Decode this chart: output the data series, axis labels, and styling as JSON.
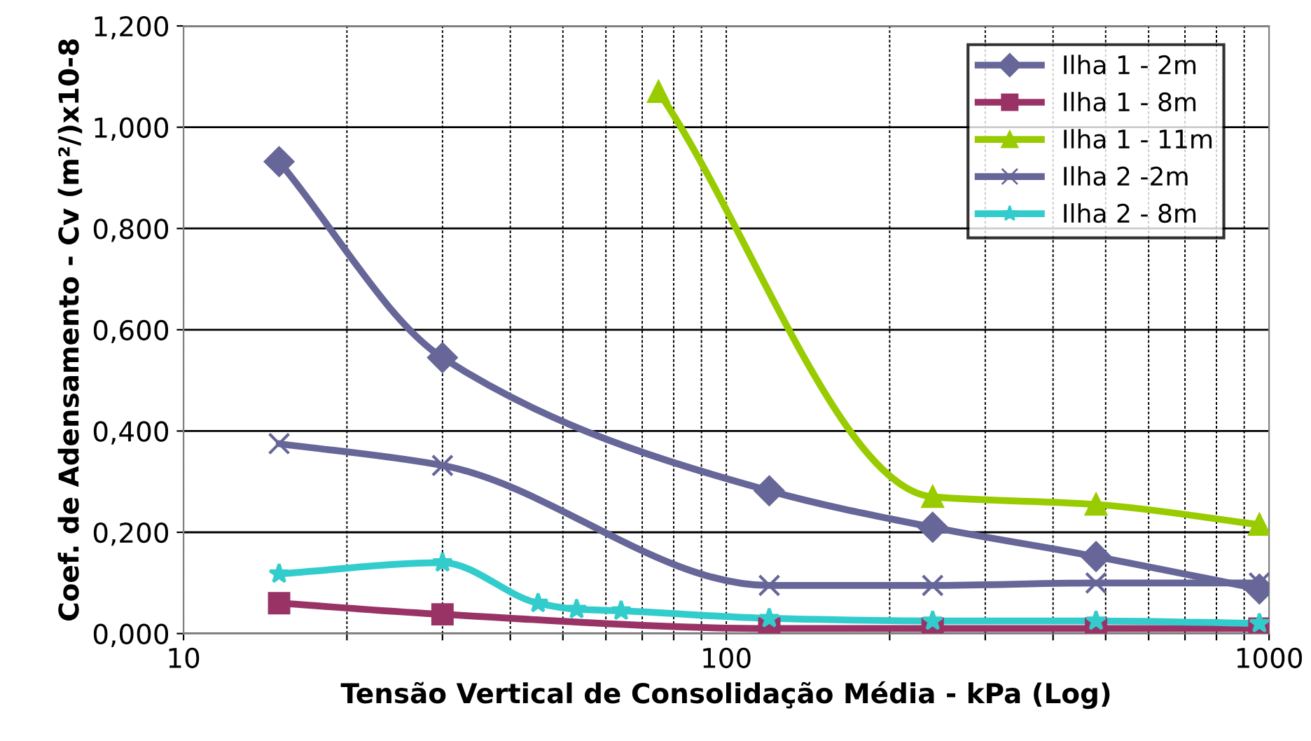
{
  "chart_data": {
    "type": "line",
    "xlabel": "Tensão Vertical de Consolidação Média - kPa (Log)",
    "ylabel": "Coef. de Adensamento - Cv (m²/)x10-8",
    "log": "x",
    "xlim": [
      10,
      1000
    ],
    "xticks": [
      10,
      {
        "value": 20,
        "label": null
      },
      {
        "value": 30,
        "label": null
      },
      {
        "value": 40,
        "label": null
      },
      {
        "value": 50,
        "label": null
      },
      {
        "value": 60,
        "label": null
      },
      {
        "value": 70,
        "label": null
      },
      {
        "value": 80,
        "label": null
      },
      {
        "value": 90,
        "label": null
      },
      100,
      {
        "value": 200,
        "label": null
      },
      {
        "value": 300,
        "label": null
      },
      {
        "value": 400,
        "label": null
      },
      {
        "value": 500,
        "label": null
      },
      {
        "value": 600,
        "label": null
      },
      {
        "value": 700,
        "label": null
      },
      {
        "value": 800,
        "label": null
      },
      {
        "value": 900,
        "label": null
      },
      1000
    ],
    "ylim": [
      0,
      1.2
    ],
    "yticks": [
      {
        "value": 0,
        "label": "0,000"
      },
      {
        "value": 0.2,
        "label": "0,200"
      },
      {
        "value": 0.4,
        "label": "0,400"
      },
      {
        "value": 0.6,
        "label": "0,600"
      },
      {
        "value": 0.8,
        "label": "0,800"
      },
      {
        "value": 1.0,
        "label": "1,000"
      },
      {
        "value": 1.2,
        "label": "1,200"
      }
    ],
    "grid": true,
    "legend": "top right",
    "line_style": "solid",
    "series": [
      {
        "name": "Ilha 1 - 2m",
        "color": "#666699",
        "marker": "diamond",
        "x": [
          15,
          30,
          120,
          240,
          480,
          960
        ],
        "values": [
          0.932,
          0.545,
          0.282,
          0.21,
          0.152,
          0.088
        ]
      },
      {
        "name": "Ilha 1 - 8m",
        "color": "#993366",
        "marker": "square",
        "x": [
          15,
          30,
          120,
          240,
          480,
          960
        ],
        "values": [
          0.06,
          0.038,
          0.01,
          0.01,
          0.01,
          0.01
        ]
      },
      {
        "name": "Ilha 1 - 11m",
        "color": "#99cc00",
        "marker": "triangle",
        "x": [
          75,
          240,
          480,
          960
        ],
        "values": [
          1.07,
          0.27,
          0.255,
          0.215
        ]
      },
      {
        "name": "Ilha 2 -2m",
        "color": "#666699",
        "marker": "cross",
        "x": [
          15,
          30,
          120,
          240,
          480,
          960
        ],
        "values": [
          0.375,
          0.332,
          0.095,
          0.095,
          0.1,
          0.1
        ]
      },
      {
        "name": "Ilha 2 - 8m",
        "color": "#33cccc",
        "marker": "star",
        "x": [
          15,
          30,
          45,
          53,
          64,
          120,
          240,
          480,
          960
        ],
        "values": [
          0.118,
          0.14,
          0.06,
          0.048,
          0.045,
          0.03,
          0.025,
          0.025,
          0.02
        ]
      }
    ]
  }
}
